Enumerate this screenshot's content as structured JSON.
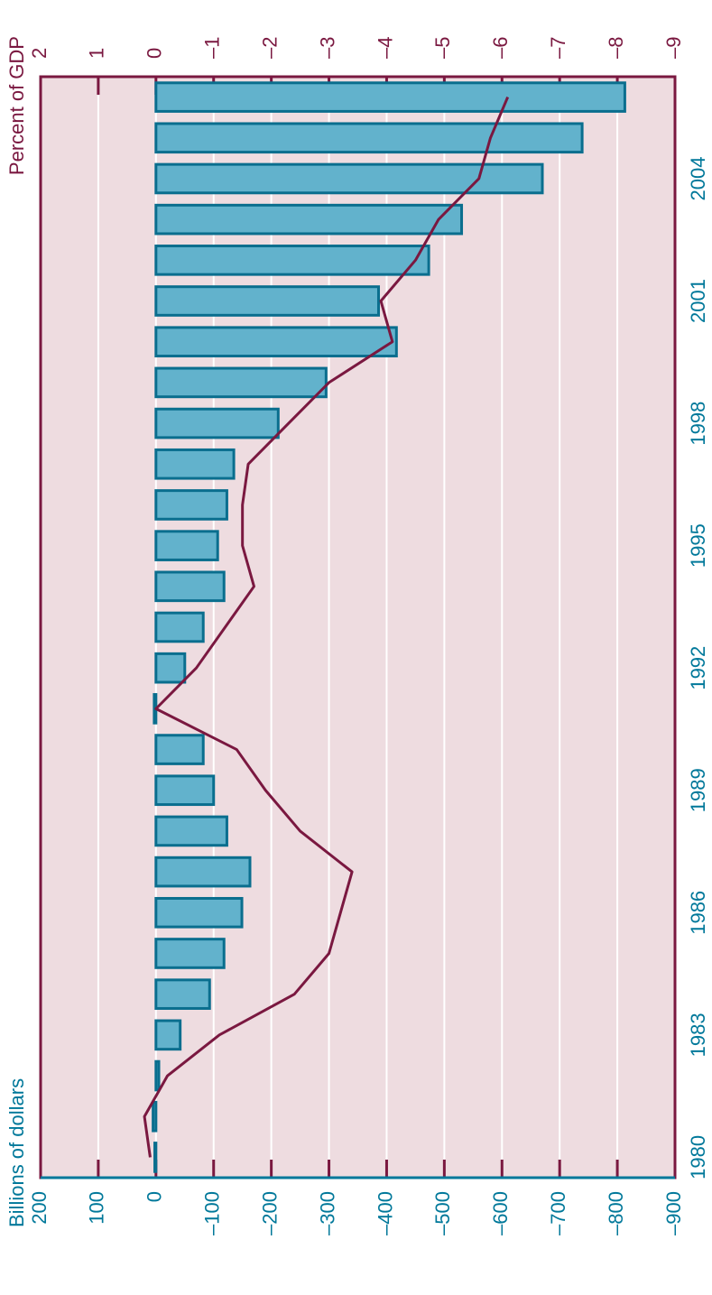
{
  "chart_data": {
    "type": "bar",
    "y_label": "Billions of dollars",
    "y2_label": "Percent of GDP",
    "categories": [
      "1980",
      null,
      null,
      "1983",
      null,
      null,
      "1986",
      null,
      null,
      "1989",
      null,
      null,
      "1992",
      null,
      null,
      "1995",
      null,
      null,
      "1998",
      null,
      null,
      "2001",
      null,
      null,
      "2004",
      null,
      null
    ],
    "series": [
      {
        "type": "bar",
        "color": "#62b2cc",
        "values": [
          2,
          5,
          -5,
          -42,
          -93,
          -118,
          -149,
          -163,
          -123,
          -100,
          -82,
          3,
          -50,
          -82,
          -118,
          -107,
          -123,
          -135,
          -212,
          -295,
          -417,
          -386,
          -473,
          -530,
          -670,
          -739,
          -813
        ]
      },
      {
        "type": "line",
        "axis": "y2",
        "color": "#7a1840",
        "values": [
          0.1,
          0.2,
          -0.2,
          -1.1,
          -2.4,
          -3.0,
          -3.2,
          -3.4,
          -2.5,
          -1.9,
          -1.4,
          0.0,
          -0.7,
          -1.2,
          -1.7,
          -1.5,
          -1.5,
          -1.6,
          -2.3,
          -3.0,
          -4.1,
          -3.9,
          -4.5,
          -4.9,
          -5.6,
          -5.8,
          -6.1
        ]
      }
    ],
    "ylim": [
      -900,
      200
    ],
    "yticks": [
      200,
      100,
      0,
      {
        "value": -100,
        "label": "–100"
      },
      {
        "value": -200,
        "label": "–200"
      },
      {
        "value": -300,
        "label": "–300"
      },
      {
        "value": -400,
        "label": "–400"
      },
      {
        "value": -500,
        "label": "–500"
      },
      {
        "value": -600,
        "label": "–600"
      },
      {
        "value": -700,
        "label": "–700"
      },
      {
        "value": -800,
        "label": "–800"
      },
      {
        "value": -900,
        "label": "–900"
      }
    ],
    "y2lim": [
      -9,
      2
    ],
    "y2ticks": [
      2,
      1,
      0,
      {
        "value": -1,
        "label": "–1"
      },
      {
        "value": -2,
        "label": "–2"
      },
      {
        "value": -3,
        "label": "–3"
      },
      {
        "value": -4,
        "label": "–4"
      },
      {
        "value": -5,
        "label": "–5"
      },
      {
        "value": -6,
        "label": "–6"
      },
      {
        "value": -7,
        "label": "–7"
      },
      {
        "value": -8,
        "label": "–8"
      },
      {
        "value": -9,
        "label": "–9"
      }
    ],
    "grid": true,
    "background": "#eedce0"
  }
}
